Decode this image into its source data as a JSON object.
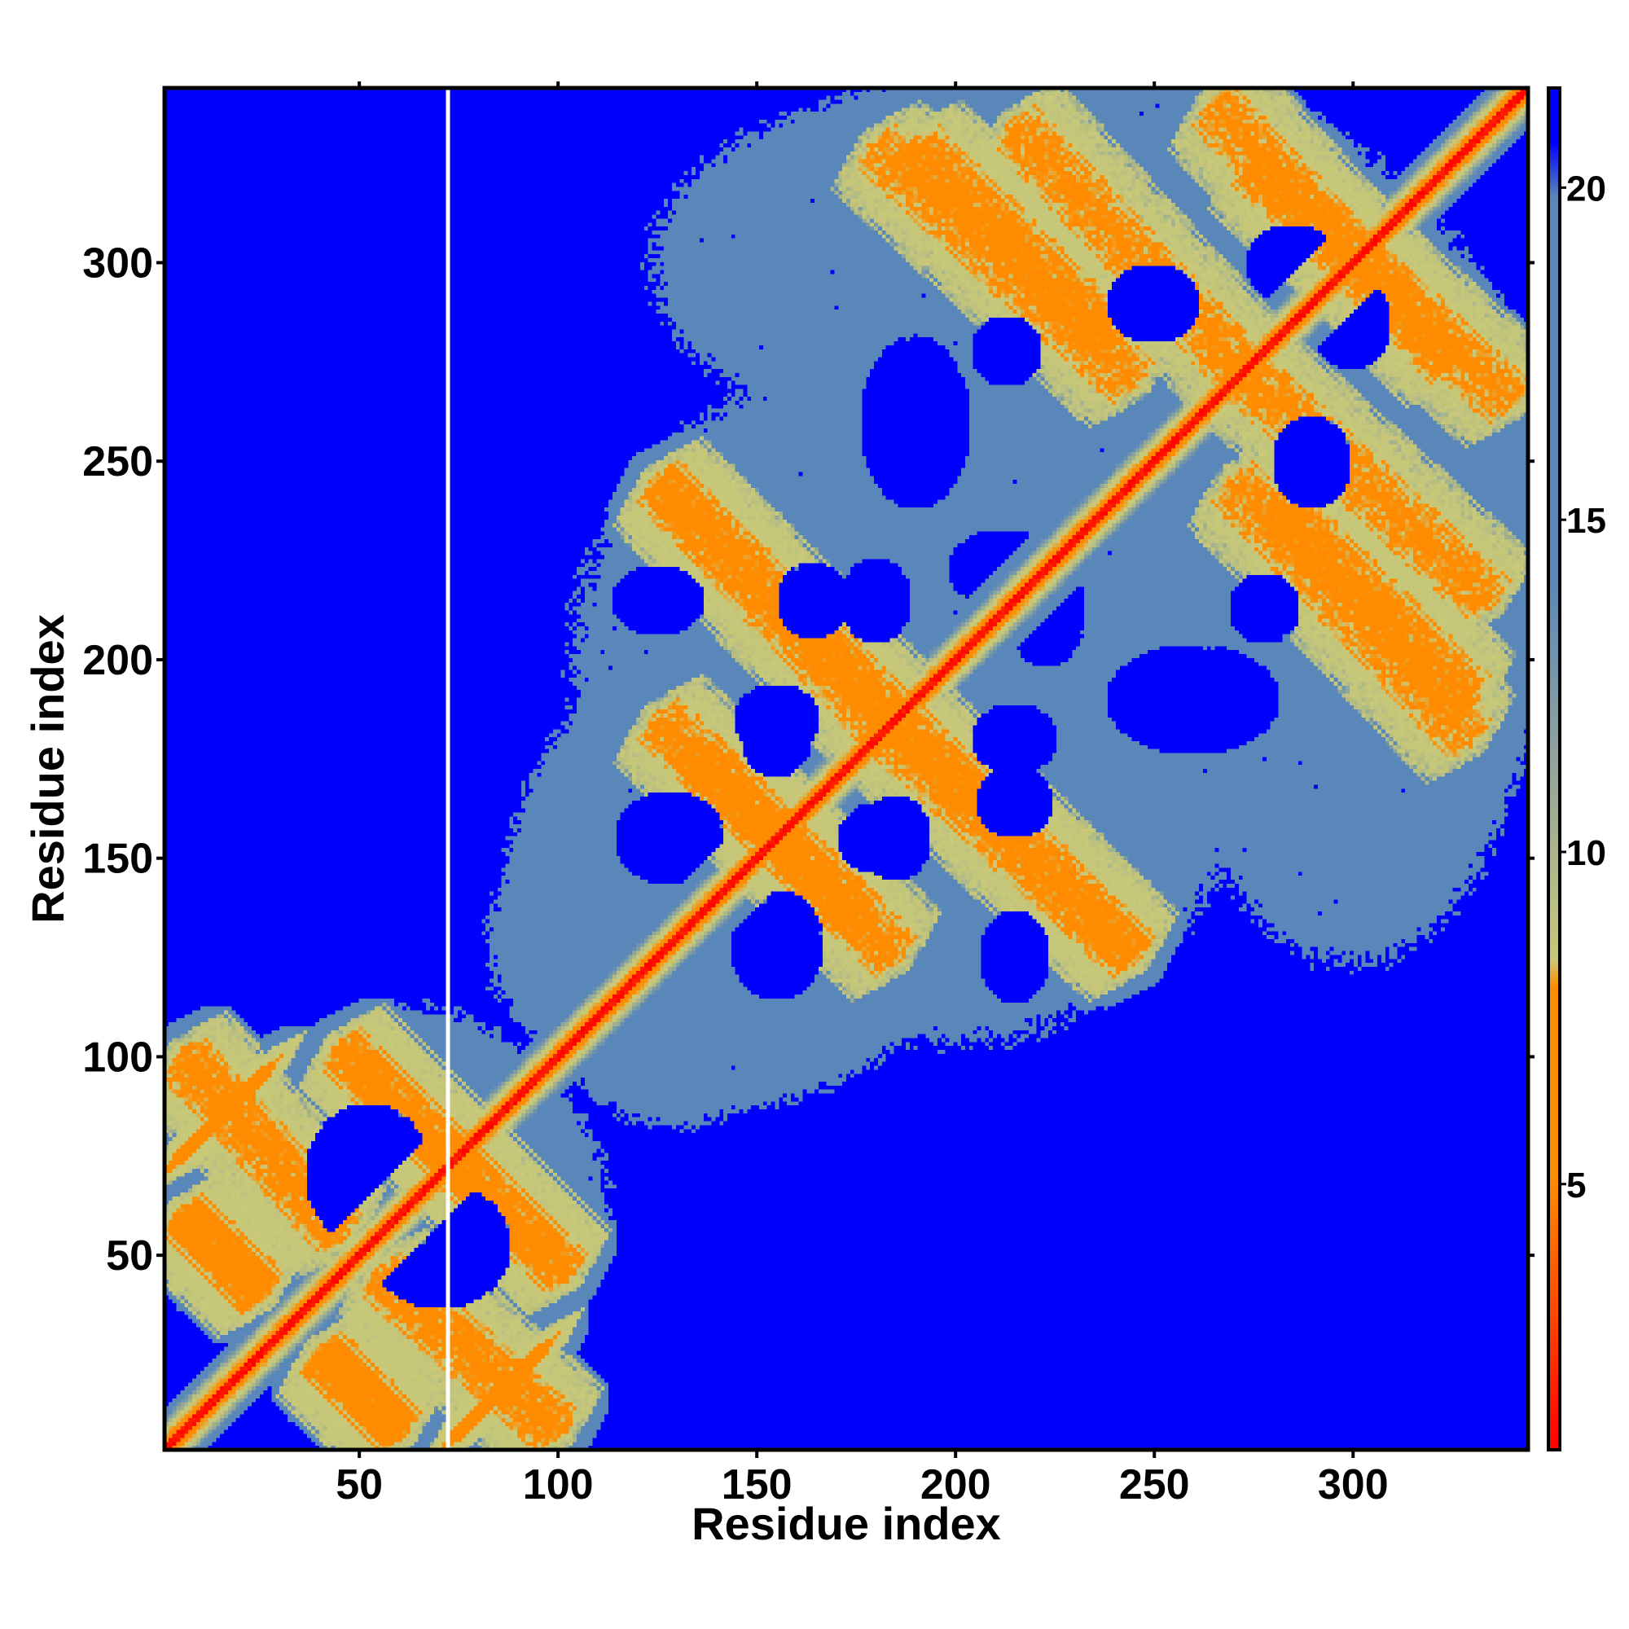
{
  "chart_data": {
    "type": "heatmap",
    "title": "",
    "xlabel": "Residue index",
    "ylabel": "Residue index",
    "xlim": [
      1,
      344
    ],
    "ylim": [
      1,
      344
    ],
    "n_residues": 344,
    "xticks": [
      50,
      100,
      150,
      200,
      250,
      300
    ],
    "yticks": [
      50,
      100,
      150,
      200,
      250,
      300
    ],
    "colorbar": {
      "range": [
        1,
        21.5
      ],
      "ticks": [
        5,
        10,
        15,
        20
      ],
      "colors": {
        "red": "#ff0000",
        "orange": "#ff8c00",
        "yellow_green": "#c8c878",
        "grey_blue": "#5a87b9",
        "blue": "#0000ff"
      }
    },
    "background_value": 21,
    "diagonal_band": {
      "core_width": 4,
      "halo_width": 10
    },
    "contact_bands": [
      {
        "type": "anti",
        "x": [
          5,
          45
        ],
        "y": [
          100,
          55
        ]
      },
      {
        "type": "anti",
        "x": [
          45,
          102
        ],
        "y": [
          102,
          45
        ]
      },
      {
        "type": "anti",
        "x": [
          40,
          60
        ],
        "y": [
          25,
          5
        ]
      },
      {
        "type": "anti",
        "x": [
          75,
          95
        ],
        "y": [
          5,
          25
        ]
      },
      {
        "type": "anti",
        "x": [
          125,
          185
        ],
        "y": [
          245,
          180
        ]
      },
      {
        "type": "anti",
        "x": [
          135,
          185
        ],
        "y": [
          175,
          125
        ]
      },
      {
        "type": "anti",
        "x": [
          185,
          245
        ],
        "y": [
          185,
          125
        ]
      },
      {
        "type": "anti",
        "x": [
          190,
          240
        ],
        "y": [
          330,
          280
        ]
      },
      {
        "type": "anti",
        "x": [
          215,
          275
        ],
        "y": [
          335,
          270
        ]
      },
      {
        "type": "anti",
        "x": [
          265,
          325
        ],
        "y": [
          340,
          275
        ]
      },
      {
        "type": "anti",
        "x": [
          270,
          330
        ],
        "y": [
          245,
          180
        ]
      }
    ],
    "grey_blobs": [
      {
        "cx": 190,
        "cy": 200,
        "rx": 90,
        "ry": 80,
        "v": 17
      },
      {
        "cx": 240,
        "cy": 295,
        "rx": 85,
        "ry": 55,
        "v": 17
      },
      {
        "cx": 300,
        "cy": 215,
        "rx": 50,
        "ry": 95,
        "v": 17
      },
      {
        "cx": 130,
        "cy": 140,
        "rx": 45,
        "ry": 60,
        "v": 17
      },
      {
        "cx": 60,
        "cy": 60,
        "rx": 55,
        "ry": 50,
        "v": 17
      }
    ],
    "holes": [
      {
        "cx": 190,
        "cy": 260,
        "rx": 14,
        "ry": 22
      },
      {
        "cx": 213,
        "cy": 278,
        "rx": 9,
        "ry": 9
      },
      {
        "cx": 164,
        "cy": 215,
        "rx": 9,
        "ry": 10
      },
      {
        "cx": 223,
        "cy": 212,
        "rx": 10,
        "ry": 14
      },
      {
        "cx": 155,
        "cy": 180,
        "rx": 9,
        "ry": 10
      },
      {
        "cx": 215,
        "cy": 180,
        "rx": 11,
        "ry": 9
      },
      {
        "cx": 261,
        "cy": 188,
        "rx": 20,
        "ry": 9
      },
      {
        "cx": 128,
        "cy": 155,
        "rx": 14,
        "ry": 12
      },
      {
        "cx": 185,
        "cy": 155,
        "rx": 9,
        "ry": 11
      },
      {
        "cx": 155,
        "cy": 125,
        "rx": 10,
        "ry": 10
      },
      {
        "cx": 215,
        "cy": 125,
        "rx": 9,
        "ry": 12
      },
      {
        "cx": 290,
        "cy": 250,
        "rx": 10,
        "ry": 12
      },
      {
        "cx": 300,
        "cy": 285,
        "rx": 10,
        "ry": 12
      },
      {
        "cx": 52,
        "cy": 70,
        "rx": 16,
        "ry": 18
      }
    ],
    "white_gap_column": 72
  }
}
